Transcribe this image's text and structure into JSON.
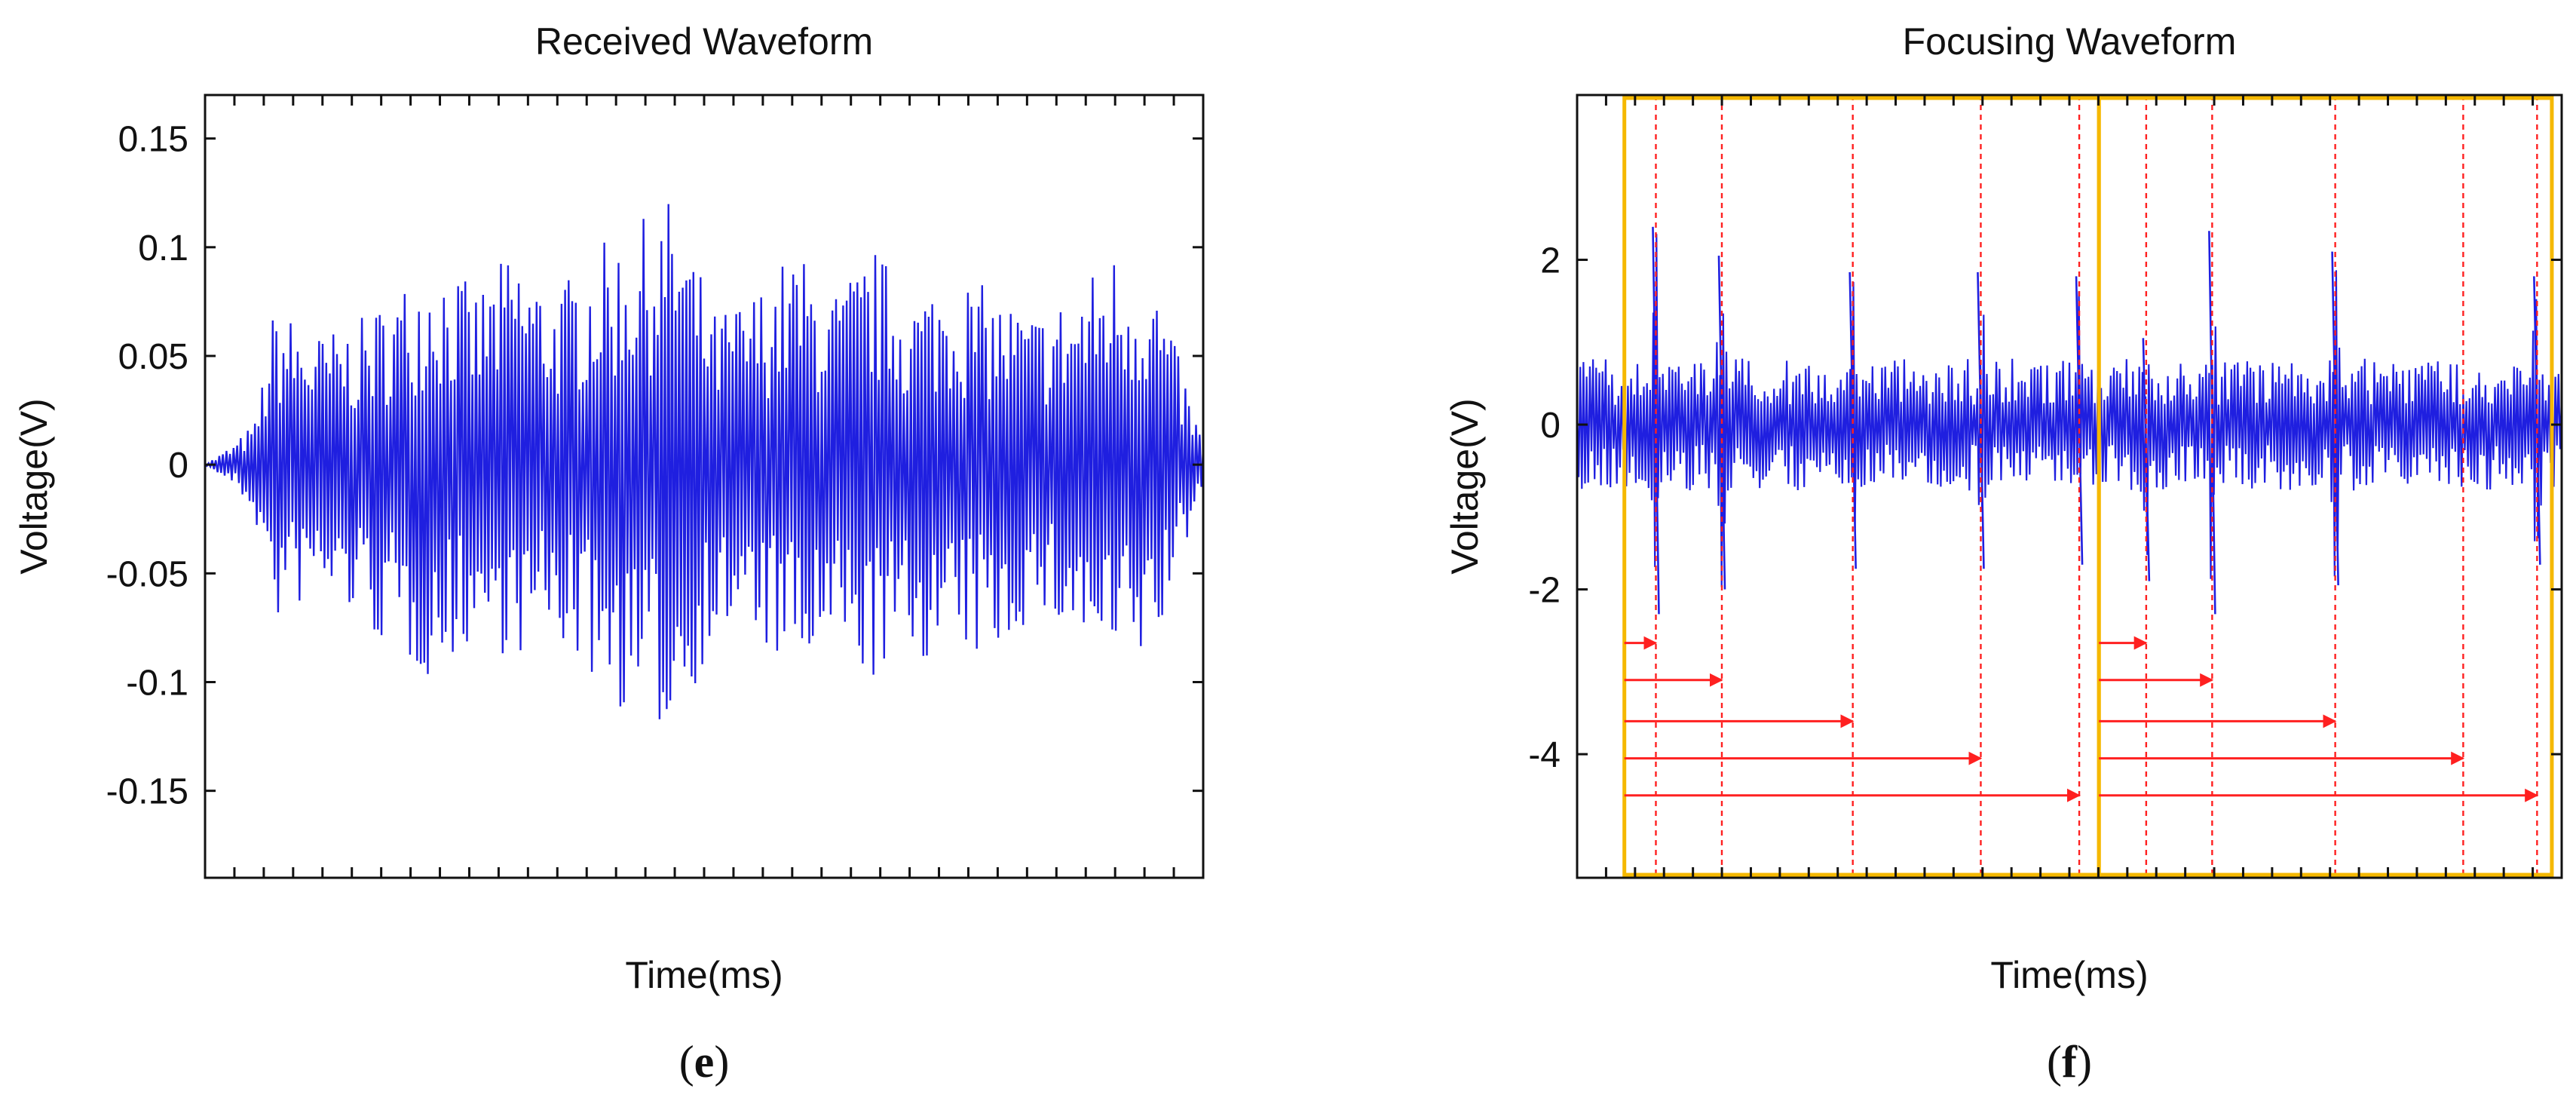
{
  "figure": {
    "panel_labels": [
      {
        "paren_open": "(",
        "letter": "e",
        "paren_close": ")"
      },
      {
        "paren_open": "(",
        "letter": "f",
        "paren_close": ")"
      }
    ]
  },
  "colors": {
    "signal": "#1f1fe0",
    "window": "#f5b800",
    "marker": "#ff2020",
    "axis": "#111111"
  },
  "chart_data": [
    {
      "type": "line",
      "title": "Received Waveform",
      "xlabel": "Time(ms)",
      "ylabel": "Voltage(V)",
      "ylim": [
        -0.19,
        0.17
      ],
      "yticks": [
        {
          "value": 0.15,
          "label": "0.15"
        },
        {
          "value": 0.1,
          "label": "0.1"
        },
        {
          "value": 0.05,
          "label": "0.05"
        },
        {
          "value": 0,
          "label": "0"
        },
        {
          "value": -0.05,
          "label": "-0.05"
        },
        {
          "value": -0.1,
          "label": "-0.1"
        },
        {
          "value": -0.15,
          "label": "-0.15"
        }
      ],
      "xlim": [
        0,
        1
      ],
      "x_tick_labels_shown": false,
      "grid": false,
      "series": [
        {
          "style": "dense oscillation",
          "x": [
            0,
            0.03,
            0.05,
            0.07,
            0.11,
            0.15,
            0.19,
            0.23,
            0.27,
            0.31,
            0.35,
            0.39,
            0.43,
            0.47,
            0.51,
            0.55,
            0.59,
            0.63,
            0.67,
            0.71,
            0.75,
            0.79,
            0.83,
            0.87,
            0.91,
            0.95,
            1.0
          ],
          "upper": [
            0.0,
            0.01,
            0.02,
            0.075,
            0.06,
            0.065,
            0.08,
            0.1,
            0.08,
            0.1,
            0.08,
            0.1,
            0.11,
            0.125,
            0.07,
            0.08,
            0.1,
            0.08,
            0.1,
            0.08,
            0.09,
            0.08,
            0.07,
            0.08,
            0.1,
            0.09,
            0.01
          ],
          "lower": [
            0.0,
            -0.01,
            -0.025,
            -0.075,
            -0.06,
            -0.07,
            -0.09,
            -0.1,
            -0.08,
            -0.09,
            -0.08,
            -0.1,
            -0.12,
            -0.125,
            -0.08,
            -0.08,
            -0.1,
            -0.09,
            -0.1,
            -0.09,
            -0.09,
            -0.09,
            -0.07,
            -0.08,
            -0.1,
            -0.09,
            -0.01
          ]
        }
      ]
    },
    {
      "type": "line",
      "title": "Focusing Waveform",
      "xlabel": "Time(ms)",
      "ylabel": "Voltage(V)",
      "ylim": [
        -5.5,
        4.0
      ],
      "yticks": [
        {
          "value": 2,
          "label": "2"
        },
        {
          "value": 0,
          "label": "0"
        },
        {
          "value": -2,
          "label": "-2"
        },
        {
          "value": -4,
          "label": "-4"
        }
      ],
      "xlim": [
        0,
        1
      ],
      "x_tick_labels_shown": false,
      "grid": false,
      "baseline": {
        "upper": 0.8,
        "lower": -0.8
      },
      "peaks": [
        {
          "x": 0.08,
          "upper": 2.4,
          "lower": -2.3
        },
        {
          "x": 0.147,
          "upper": 2.05,
          "lower": -2.0
        },
        {
          "x": 0.28,
          "upper": 1.85,
          "lower": -1.75
        },
        {
          "x": 0.41,
          "upper": 1.85,
          "lower": -1.75
        },
        {
          "x": 0.51,
          "upper": 1.8,
          "lower": -1.7
        },
        {
          "x": 0.578,
          "upper": 1.05,
          "lower": -1.9
        },
        {
          "x": 0.645,
          "upper": 2.35,
          "lower": -2.3
        },
        {
          "x": 0.77,
          "upper": 2.1,
          "lower": -1.95
        },
        {
          "x": 0.975,
          "upper": 1.8,
          "lower": -1.7
        }
      ],
      "windows": [
        {
          "x_start": 0.048,
          "x_end": 0.53
        },
        {
          "x_start": 0.53,
          "x_end": 0.99
        }
      ],
      "marker_lines_x": [
        0.08,
        0.147,
        0.28,
        0.41,
        0.51,
        0.578,
        0.645,
        0.77,
        0.9,
        0.975
      ],
      "arrows": [
        {
          "x_start": 0.048,
          "x_end": 0.08,
          "y": -2.65
        },
        {
          "x_start": 0.048,
          "x_end": 0.147,
          "y": -3.1
        },
        {
          "x_start": 0.048,
          "x_end": 0.28,
          "y": -3.6
        },
        {
          "x_start": 0.048,
          "x_end": 0.41,
          "y": -4.05
        },
        {
          "x_start": 0.048,
          "x_end": 0.51,
          "y": -4.5
        },
        {
          "x_start": 0.53,
          "x_end": 0.578,
          "y": -2.65
        },
        {
          "x_start": 0.53,
          "x_end": 0.645,
          "y": -3.1
        },
        {
          "x_start": 0.53,
          "x_end": 0.77,
          "y": -3.6
        },
        {
          "x_start": 0.53,
          "x_end": 0.9,
          "y": -4.05
        },
        {
          "x_start": 0.53,
          "x_end": 0.975,
          "y": -4.5
        }
      ]
    }
  ]
}
